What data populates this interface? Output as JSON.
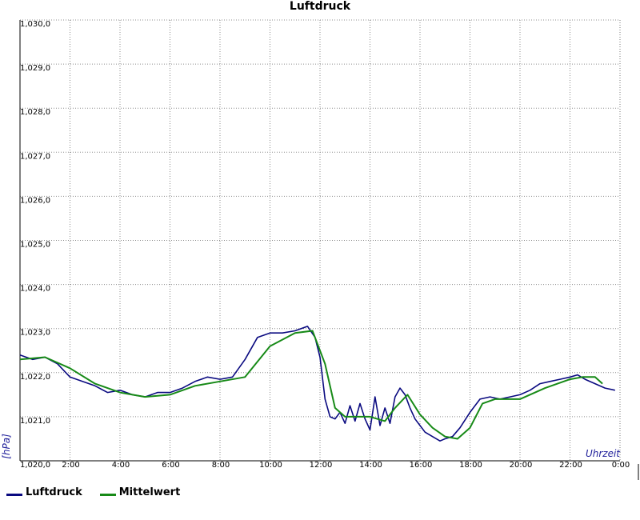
{
  "chart_data": {
    "type": "line",
    "title": "Luftdruck",
    "xlabel": "Uhrzeit",
    "ylabel": "[hPa]",
    "xlim": [
      0,
      24
    ],
    "ylim": [
      1020.0,
      1030.0
    ],
    "x_ticks": [
      "2:00",
      "4:00",
      "6:00",
      "8:00",
      "10:00",
      "12:00",
      "14:00",
      "16:00",
      "18:00",
      "20:00",
      "22:00",
      "0:00"
    ],
    "y_ticks": [
      "1,020,0",
      "1,021,0",
      "1,022,0",
      "1,023,0",
      "1,024,0",
      "1,025,0",
      "1,026,0",
      "1,027,0",
      "1,028,0",
      "1,029,0",
      "1,030,0"
    ],
    "grid": true,
    "legend_position": "bottom-left",
    "series": [
      {
        "name": "Luftdruck",
        "color": "#0a0a80",
        "x": [
          0.0,
          0.5,
          1.0,
          1.5,
          2.0,
          2.5,
          3.0,
          3.5,
          4.0,
          4.5,
          5.0,
          5.5,
          6.0,
          6.5,
          7.0,
          7.5,
          8.0,
          8.5,
          9.0,
          9.5,
          10.0,
          10.5,
          11.0,
          11.5,
          11.8,
          12.0,
          12.2,
          12.4,
          12.6,
          12.8,
          13.0,
          13.2,
          13.4,
          13.6,
          13.8,
          14.0,
          14.2,
          14.4,
          14.6,
          14.8,
          15.0,
          15.2,
          15.4,
          15.6,
          15.8,
          16.0,
          16.2,
          16.5,
          16.8,
          17.0,
          17.3,
          17.6,
          18.0,
          18.4,
          18.8,
          19.2,
          19.6,
          20.0,
          20.4,
          20.8,
          21.2,
          21.6,
          22.0,
          22.3,
          22.6,
          23.0,
          23.4,
          23.8
        ],
        "y": [
          1022.4,
          1022.3,
          1022.35,
          1022.2,
          1021.9,
          1021.8,
          1021.7,
          1021.55,
          1021.6,
          1021.5,
          1021.45,
          1021.55,
          1021.55,
          1021.65,
          1021.8,
          1021.9,
          1021.85,
          1021.9,
          1022.3,
          1022.8,
          1022.9,
          1022.9,
          1022.95,
          1023.05,
          1022.8,
          1022.35,
          1021.4,
          1021.0,
          1020.95,
          1021.1,
          1020.85,
          1021.25,
          1020.9,
          1021.3,
          1020.95,
          1020.7,
          1021.45,
          1020.8,
          1021.2,
          1020.85,
          1021.45,
          1021.65,
          1021.5,
          1021.2,
          1020.95,
          1020.8,
          1020.65,
          1020.55,
          1020.45,
          1020.5,
          1020.55,
          1020.75,
          1021.1,
          1021.4,
          1021.45,
          1021.4,
          1021.45,
          1021.5,
          1021.6,
          1021.75,
          1021.8,
          1021.85,
          1021.9,
          1021.95,
          1021.85,
          1021.75,
          1021.65,
          1021.6
        ]
      },
      {
        "name": "Mittelwert",
        "color": "#178a17",
        "x": [
          0.0,
          1.0,
          2.0,
          3.0,
          4.0,
          5.0,
          6.0,
          7.0,
          8.0,
          9.0,
          10.0,
          11.0,
          11.7,
          12.2,
          12.6,
          13.0,
          14.0,
          14.6,
          15.0,
          15.5,
          16.0,
          16.5,
          17.0,
          17.5,
          18.0,
          18.5,
          19.0,
          20.0,
          21.0,
          22.0,
          22.5,
          23.0,
          23.3
        ],
        "y": [
          1022.3,
          1022.35,
          1022.1,
          1021.75,
          1021.55,
          1021.45,
          1021.5,
          1021.7,
          1021.8,
          1021.9,
          1022.6,
          1022.9,
          1022.95,
          1022.2,
          1021.2,
          1021.0,
          1021.0,
          1020.9,
          1021.2,
          1021.5,
          1021.05,
          1020.75,
          1020.55,
          1020.5,
          1020.75,
          1021.3,
          1021.4,
          1021.4,
          1021.65,
          1021.85,
          1021.9,
          1021.9,
          1021.75
        ]
      }
    ]
  }
}
